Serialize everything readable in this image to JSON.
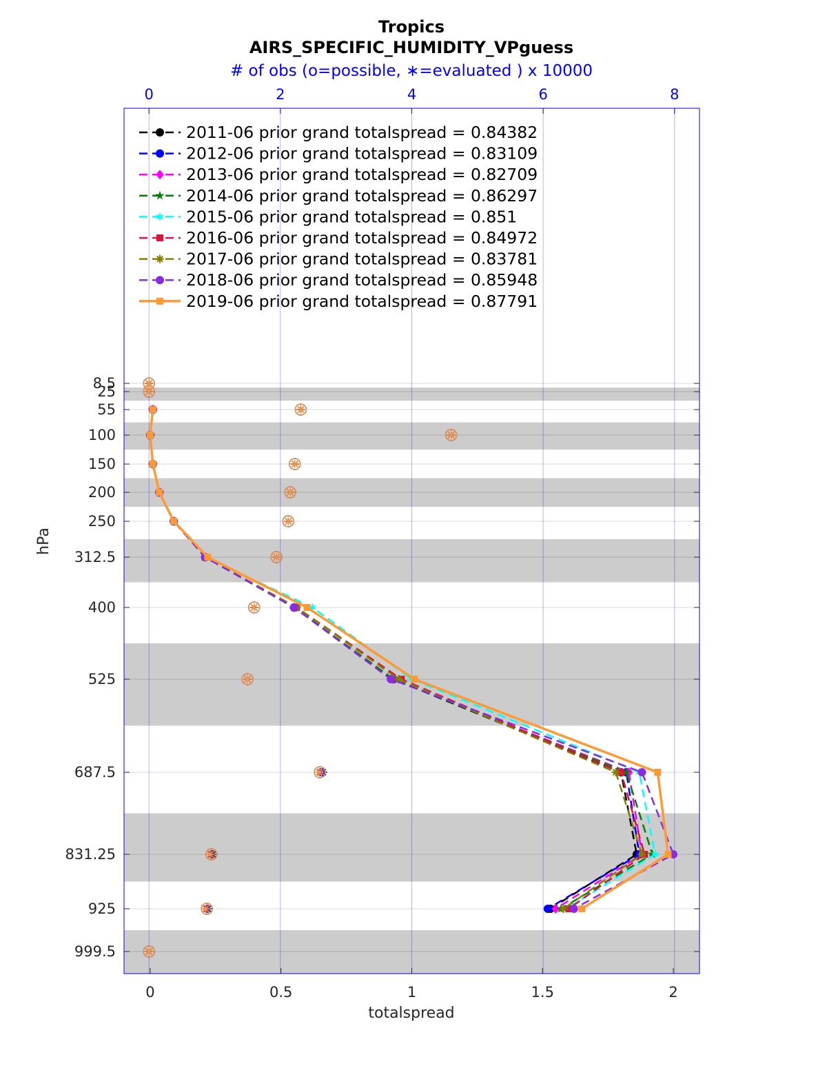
{
  "chart_data": {
    "type": "line",
    "title": "Tropics",
    "subtitle": "AIRS_SPECIFIC_HUMIDITY_VPguess",
    "top_axis_label": "# of obs (o=possible, ∗=evaluated ) x 10000",
    "xlabel": "totalspread",
    "ylabel": "hPa",
    "xlim": [
      -0.1,
      2.1
    ],
    "x_ticks": [
      "0",
      "0.5",
      "1",
      "1.5",
      "2"
    ],
    "top_xlim": [
      -0.38,
      8.38
    ],
    "top_ticks": [
      "0",
      "2",
      "4",
      "6",
      "8"
    ],
    "y_levels": [
      8.5,
      25,
      55,
      100,
      150,
      200,
      250,
      312.5,
      400,
      525,
      687.5,
      831.25,
      925,
      999.5
    ],
    "y_tick_labels": [
      "8.5",
      "25",
      "55",
      "100",
      "150",
      "200",
      "250",
      "312.5",
      "400",
      "525",
      "687.5",
      "831.25",
      "925",
      "999.5"
    ],
    "y_reversed": true,
    "grid": true,
    "legend_position": "top-left",
    "series": [
      {
        "name": "2011-06 prior grand totalspread = 0.84382",
        "color": "#000000",
        "style": "dashed",
        "marker": "circle",
        "spread": [
          null,
          null,
          0.01,
          0.0,
          0.01,
          0.035,
          0.09,
          0.21,
          0.55,
          0.93,
          1.8,
          1.86,
          1.53,
          null
        ],
        "obs_possible": [
          0,
          0,
          2.31,
          4.6,
          2.22,
          2.15,
          2.12,
          1.94,
          1.6,
          1.5,
          2.6,
          0.95,
          0.88,
          0
        ],
        "obs_used": [
          0,
          0,
          2.31,
          4.6,
          2.22,
          2.15,
          2.12,
          1.94,
          1.6,
          1.5,
          2.65,
          0.97,
          0.9,
          0
        ]
      },
      {
        "name": "2012-06 prior grand totalspread = 0.83109",
        "color": "#0000ff",
        "style": "dashed",
        "marker": "circle",
        "spread": [
          null,
          null,
          0.01,
          0.0,
          0.01,
          0.035,
          0.09,
          0.21,
          0.55,
          0.93,
          1.82,
          1.87,
          1.52,
          null
        ],
        "obs_possible": [
          0,
          0,
          2.31,
          4.6,
          2.22,
          2.15,
          2.12,
          1.94,
          1.6,
          1.5,
          2.6,
          0.95,
          0.88,
          0
        ],
        "obs_used": [
          0,
          0,
          2.31,
          4.6,
          2.22,
          2.15,
          2.12,
          1.94,
          1.6,
          1.5,
          2.64,
          0.96,
          0.9,
          0
        ]
      },
      {
        "name": "2013-06 prior grand totalspread = 0.82709",
        "color": "#ff00ff",
        "style": "dashed",
        "marker": "diamond",
        "spread": [
          null,
          null,
          0.01,
          0.0,
          0.01,
          0.035,
          0.09,
          0.21,
          0.55,
          0.93,
          1.83,
          1.88,
          1.55,
          null
        ],
        "obs_possible": [
          0,
          0,
          2.31,
          4.6,
          2.22,
          2.15,
          2.12,
          1.94,
          1.6,
          1.5,
          2.6,
          0.95,
          0.88,
          0
        ],
        "obs_used": [
          0,
          0,
          2.31,
          4.6,
          2.22,
          2.15,
          2.12,
          1.94,
          1.6,
          1.5,
          2.63,
          0.96,
          0.89,
          0
        ]
      },
      {
        "name": "2014-06 prior grand totalspread = 0.86297",
        "color": "#008000",
        "style": "dashed",
        "marker": "star",
        "spread": [
          null,
          null,
          0.01,
          0.0,
          0.01,
          0.035,
          0.09,
          0.21,
          0.55,
          0.93,
          1.82,
          1.92,
          1.57,
          null
        ],
        "obs_possible": [
          0,
          0,
          2.31,
          4.6,
          2.22,
          2.15,
          2.12,
          1.94,
          1.6,
          1.5,
          2.6,
          0.95,
          0.88,
          0
        ],
        "obs_used": [
          0,
          0,
          2.31,
          4.6,
          2.22,
          2.15,
          2.12,
          1.94,
          1.6,
          1.5,
          2.62,
          0.96,
          0.89,
          0
        ]
      },
      {
        "name": "2015-06 prior grand totalspread = 0.851",
        "color": "#00ffff",
        "style": "dashed",
        "marker": "hexagram",
        "spread": [
          null,
          null,
          0.01,
          0.0,
          0.01,
          0.035,
          0.09,
          0.21,
          0.62,
          1.0,
          1.87,
          1.93,
          1.59,
          null
        ],
        "obs_possible": [
          0,
          0,
          2.31,
          4.6,
          2.22,
          2.15,
          2.12,
          1.94,
          1.6,
          1.5,
          2.6,
          0.95,
          0.88,
          0
        ],
        "obs_used": [
          0,
          0,
          2.31,
          4.6,
          2.22,
          2.15,
          2.12,
          1.94,
          1.6,
          1.5,
          2.62,
          0.95,
          0.88,
          0
        ]
      },
      {
        "name": "2016-06 prior grand totalspread = 0.84972",
        "color": "#dc143c",
        "style": "dashed",
        "marker": "square",
        "spread": [
          null,
          null,
          0.01,
          0.0,
          0.01,
          0.035,
          0.09,
          0.21,
          0.56,
          0.96,
          1.8,
          1.89,
          1.6,
          null
        ],
        "obs_possible": [
          0,
          0,
          2.31,
          4.6,
          2.22,
          2.15,
          2.12,
          1.94,
          1.6,
          1.5,
          2.6,
          0.95,
          0.88,
          0
        ],
        "obs_used": [
          0,
          0,
          2.31,
          4.6,
          2.22,
          2.15,
          2.12,
          1.94,
          1.6,
          1.5,
          2.61,
          0.95,
          0.88,
          0
        ]
      },
      {
        "name": "2017-06 prior grand totalspread = 0.83781",
        "color": "#808000",
        "style": "dashed",
        "marker": "asterisk",
        "spread": [
          null,
          null,
          0.01,
          0.0,
          0.01,
          0.035,
          0.09,
          0.21,
          0.56,
          0.95,
          1.78,
          1.88,
          1.58,
          null
        ],
        "obs_possible": [
          0,
          0,
          2.31,
          4.6,
          2.22,
          2.15,
          2.12,
          1.94,
          1.6,
          1.5,
          2.6,
          0.95,
          0.88,
          0
        ],
        "obs_used": [
          0,
          0,
          2.31,
          4.6,
          2.22,
          2.15,
          2.12,
          1.94,
          1.6,
          1.5,
          2.6,
          0.94,
          0.87,
          0
        ]
      },
      {
        "name": "2018-06 prior grand totalspread = 0.85948",
        "color": "#8a2be2",
        "style": "dashed",
        "marker": "circle",
        "spread": [
          null,
          null,
          0.01,
          0.0,
          0.01,
          0.035,
          0.09,
          0.21,
          0.55,
          0.92,
          1.88,
          2.0,
          1.62,
          null
        ],
        "obs_possible": [
          0,
          0,
          2.31,
          4.6,
          2.22,
          2.15,
          2.12,
          1.94,
          1.6,
          1.5,
          2.6,
          0.95,
          0.88,
          0
        ],
        "obs_used": [
          0,
          0,
          2.31,
          4.6,
          2.22,
          2.15,
          2.12,
          1.94,
          1.6,
          1.5,
          2.6,
          0.94,
          0.87,
          0
        ]
      },
      {
        "name": "2019-06 prior grand totalspread = 0.87791",
        "color": "#ff9933",
        "style": "solid",
        "marker": "square",
        "spread": [
          null,
          null,
          0.01,
          0.0,
          0.01,
          0.035,
          0.09,
          0.22,
          0.6,
          1.01,
          1.94,
          1.98,
          1.65,
          null
        ],
        "obs_possible": [
          0,
          0,
          2.31,
          4.6,
          2.22,
          2.15,
          2.12,
          1.94,
          1.6,
          1.5,
          2.6,
          0.95,
          0.88,
          0
        ],
        "obs_used": [
          0,
          0,
          2.31,
          4.6,
          2.22,
          2.15,
          2.12,
          1.94,
          1.6,
          1.5,
          2.59,
          0.93,
          0.86,
          0
        ]
      }
    ]
  }
}
